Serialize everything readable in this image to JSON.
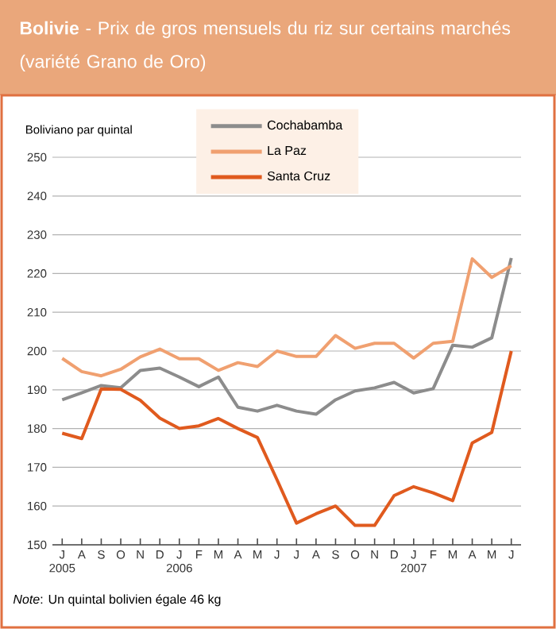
{
  "chart_data": {
    "type": "line",
    "title": "**Bolivie** - Prix de gros mensuels du riz sur certains marchés (variété Grano de Oro)",
    "ylabel": "Boliviano par quintal",
    "categories": [
      "J 2005",
      "A",
      "S",
      "O",
      "N",
      "D",
      "J 2006",
      "F",
      "M",
      "A",
      "M",
      "J",
      "J",
      "A",
      "S",
      "O",
      "N",
      "D",
      "J 2007",
      "F",
      "M",
      "A",
      "M",
      "J"
    ],
    "series": [
      {
        "name": "Cochabamba",
        "color": "#8c8c8c",
        "values": [
          187.4,
          189.2,
          191.1,
          190.5,
          195,
          195.6,
          193.3,
          190.8,
          193.3,
          185.5,
          184.5,
          186,
          184.5,
          183.7,
          187.4,
          189.7,
          190.5,
          191.9,
          189.2,
          190.3,
          201.5,
          201,
          203.4,
          224
        ]
      },
      {
        "name": "La Paz",
        "color": "#f0a070",
        "values": [
          198.1,
          194.7,
          193.6,
          195.3,
          198.5,
          200.5,
          198,
          198,
          195,
          197,
          196,
          200,
          198.6,
          198.6,
          204,
          200.7,
          202,
          202,
          198.2,
          202,
          202.5,
          223.8,
          219,
          222
        ]
      },
      {
        "name": "Santa Cruz",
        "color": "#e05a1e",
        "values": [
          178.8,
          177.4,
          190.2,
          190.1,
          187.3,
          182.7,
          180,
          180.7,
          182.6,
          180,
          177.7,
          166.8,
          155.6,
          158,
          160,
          155,
          155,
          162.7,
          165,
          163.4,
          161.4,
          176.3,
          179,
          200
        ]
      }
    ],
    "ylim": [
      150,
      250
    ],
    "yticks": [
      150,
      160,
      170,
      180,
      190,
      200,
      210,
      220,
      230,
      240,
      250
    ],
    "grid": "y",
    "legend": "top",
    "line_style": "solid",
    "annotations": [
      "*Note*: Un quintal bolivien égale 46 kg"
    ]
  }
}
